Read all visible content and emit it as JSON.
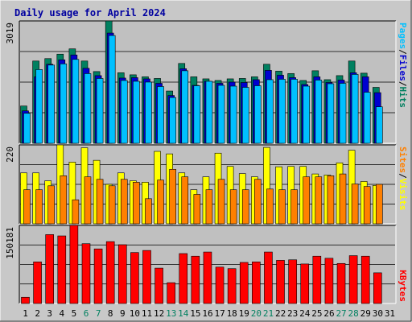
{
  "title": "Daily usage for April 2024",
  "colors": {
    "background": "#c8c8c8",
    "panel": "#c0c0c0",
    "title": "#0000a0",
    "hits": "#008060",
    "files": "#0000d0",
    "pages": "#00c0ff",
    "visits": "#ffff00",
    "sites": "#ff8000",
    "kbytes": "#ff0000",
    "weekend": "#008060"
  },
  "chart_data": [
    {
      "type": "bar",
      "id": "hits-files-pages",
      "categories": [
        "1",
        "2",
        "3",
        "4",
        "5",
        "6",
        "7",
        "8",
        "9",
        "10",
        "11",
        "12",
        "13",
        "14",
        "15",
        "16",
        "17",
        "18",
        "19",
        "20",
        "21",
        "22",
        "23",
        "24",
        "25",
        "26",
        "27",
        "28",
        "29",
        "30",
        "31"
      ],
      "ymax_label": "3019",
      "legend": {
        "pages": "Pages",
        "files": "Files",
        "hits": "Hits",
        "sep": "/"
      },
      "series": [
        {
          "name": "Hits",
          "values": [
            920,
            2030,
            2090,
            2200,
            2330,
            2030,
            1770,
            3019,
            1740,
            1690,
            1640,
            1600,
            1290,
            1970,
            1640,
            1590,
            1550,
            1590,
            1600,
            1640,
            1950,
            1780,
            1720,
            1550,
            1790,
            1570,
            1670,
            2030,
            1730,
            1380,
            null
          ]
        },
        {
          "name": "Files",
          "values": [
            800,
            1640,
            1950,
            2060,
            2180,
            1850,
            1670,
            2720,
            1610,
            1620,
            1590,
            1480,
            1180,
            1840,
            1430,
            1530,
            1480,
            1510,
            1500,
            1570,
            1800,
            1680,
            1620,
            1450,
            1640,
            1500,
            1560,
            1740,
            1640,
            1250,
            null
          ]
        },
        {
          "name": "Pages",
          "values": [
            740,
            1820,
            1930,
            1960,
            2070,
            1720,
            1600,
            2660,
            1550,
            1530,
            1510,
            1400,
            1130,
            1790,
            1420,
            1530,
            1430,
            1410,
            1380,
            1420,
            1570,
            1580,
            1580,
            1410,
            1560,
            1470,
            1480,
            1700,
            1260,
            900,
            null
          ]
        }
      ]
    },
    {
      "type": "bar",
      "id": "visits-sites",
      "categories": [
        "1",
        "2",
        "3",
        "4",
        "5",
        "6",
        "7",
        "8",
        "9",
        "10",
        "11",
        "12",
        "13",
        "14",
        "15",
        "16",
        "17",
        "18",
        "19",
        "20",
        "21",
        "22",
        "23",
        "24",
        "25",
        "26",
        "27",
        "28",
        "29",
        "30",
        "31"
      ],
      "ymax_label": "220",
      "legend": {
        "sites": "Sites",
        "visits": "Visits",
        "sep": "/"
      },
      "series": [
        {
          "name": "Visits",
          "values": [
            142,
            142,
            120,
            220,
            172,
            212,
            177,
            110,
            142,
            120,
            116,
            202,
            195,
            142,
            95,
            131,
            197,
            160,
            140,
            131,
            213,
            159,
            160,
            160,
            139,
            136,
            170,
            205,
            118,
            107,
            null
          ]
        },
        {
          "name": "Sites",
          "values": [
            95,
            95,
            106,
            134,
            67,
            131,
            124,
            106,
            124,
            116,
            70,
            122,
            152,
            131,
            82,
            95,
            124,
            95,
            95,
            124,
            97,
            95,
            95,
            131,
            131,
            134,
            139,
            111,
            104,
            110,
            null
          ]
        }
      ]
    },
    {
      "type": "bar",
      "id": "kbytes",
      "categories": [
        "1",
        "2",
        "3",
        "4",
        "5",
        "6",
        "7",
        "8",
        "9",
        "10",
        "11",
        "12",
        "13",
        "14",
        "15",
        "16",
        "17",
        "18",
        "19",
        "20",
        "21",
        "22",
        "23",
        "24",
        "25",
        "26",
        "27",
        "28",
        "29",
        "30",
        "31"
      ],
      "ymax_label": "150181",
      "legend": {
        "kbytes": "KBytes"
      },
      "series": [
        {
          "name": "KBytes",
          "values": [
            12000,
            80000,
            132500,
            130000,
            150181,
            115000,
            105000,
            119000,
            113000,
            98000,
            102000,
            68000,
            40000,
            96000,
            91000,
            99000,
            70000,
            67000,
            79000,
            80000,
            99000,
            83000,
            84000,
            76000,
            91000,
            87000,
            77000,
            92000,
            91000,
            59000,
            null
          ]
        }
      ]
    }
  ]
}
